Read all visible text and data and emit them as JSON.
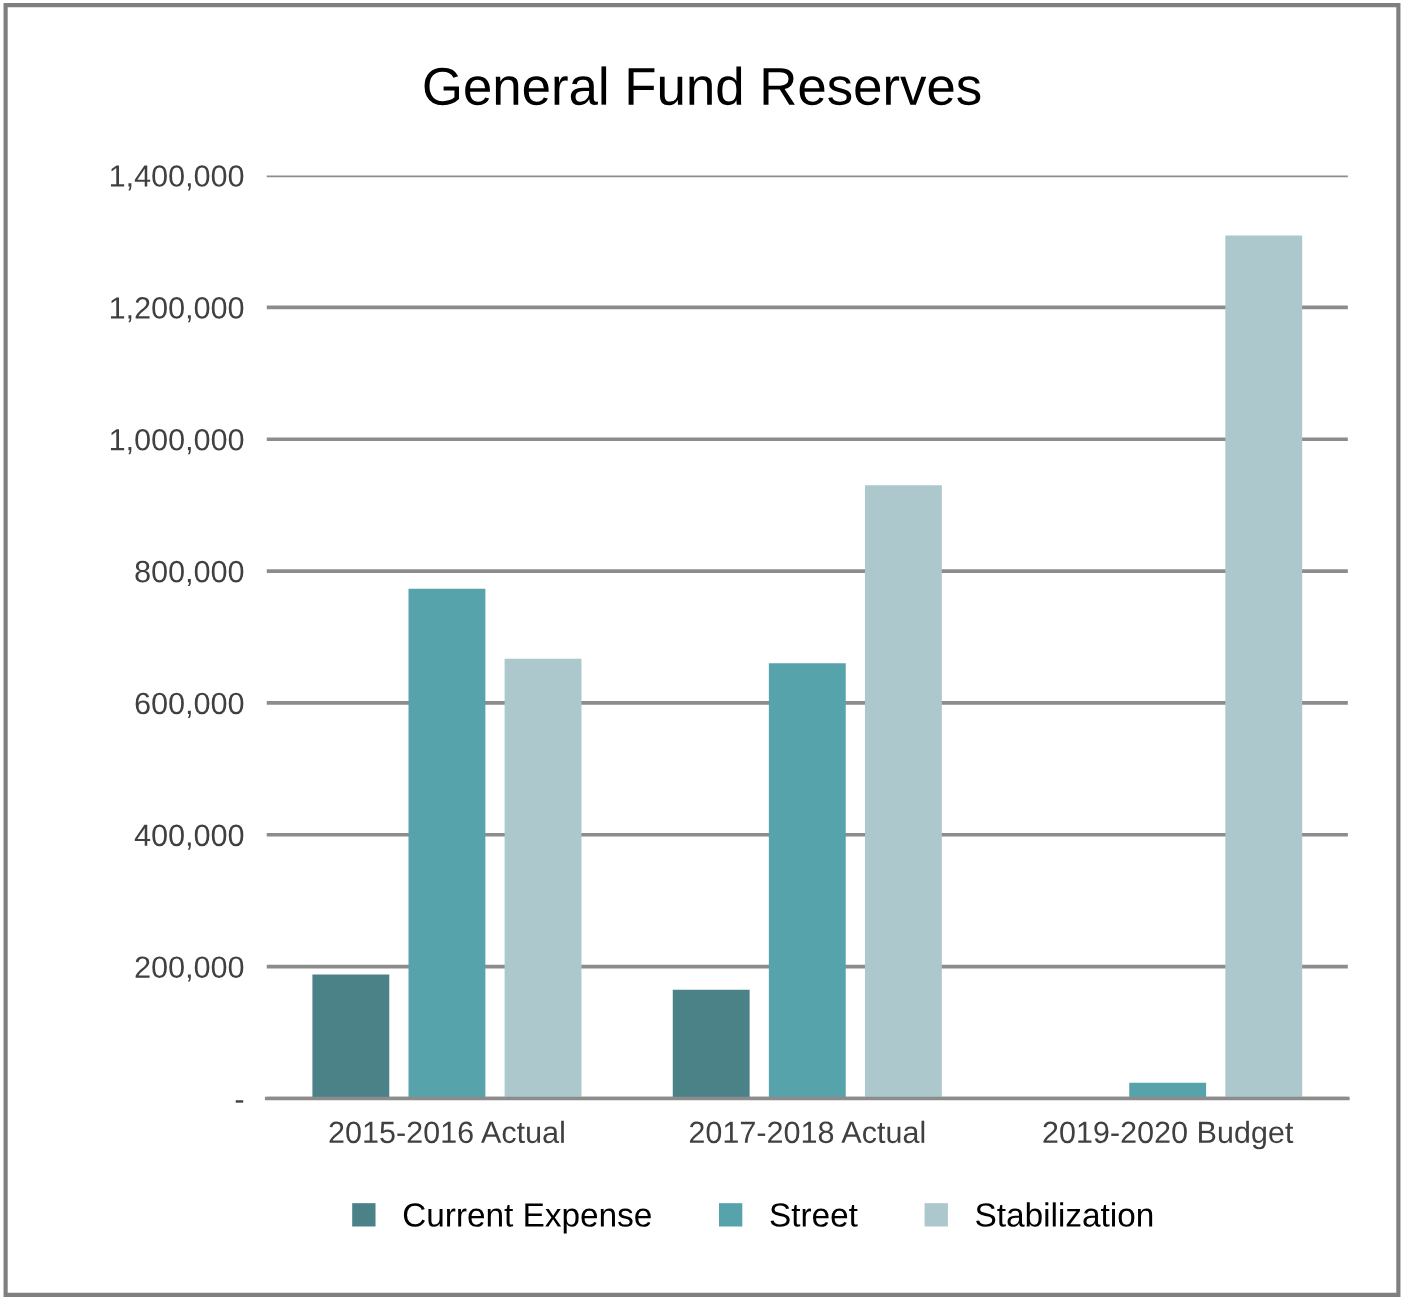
{
  "chart_data": {
    "type": "bar",
    "title": "General Fund Reserves",
    "categories": [
      "2015-2016 Actual",
      "2017-2018 Actual",
      "2019-2020 Budget"
    ],
    "series": [
      {
        "name": "Current Expense",
        "color": "#4a8288",
        "values": [
          188000,
          165000,
          0
        ]
      },
      {
        "name": "Street",
        "color": "#57a3ab",
        "values": [
          773000,
          660000,
          24000
        ]
      },
      {
        "name": "Stabilization",
        "color": "#adc8cc",
        "values": [
          667000,
          930000,
          1309000
        ]
      }
    ],
    "ylim": [
      0,
      1400000
    ],
    "yticks": [
      {
        "value": 0,
        "label": "-"
      },
      {
        "value": 200000,
        "label": "200,000"
      },
      {
        "value": 400000,
        "label": "400,000"
      },
      {
        "value": 600000,
        "label": "600,000"
      },
      {
        "value": 800000,
        "label": "800,000"
      },
      {
        "value": 1000000,
        "label": "1,000,000"
      },
      {
        "value": 1200000,
        "label": "1,200,000"
      },
      {
        "value": 1400000,
        "label": "1,400,000"
      }
    ],
    "grid": "y",
    "legend": "bottom"
  }
}
